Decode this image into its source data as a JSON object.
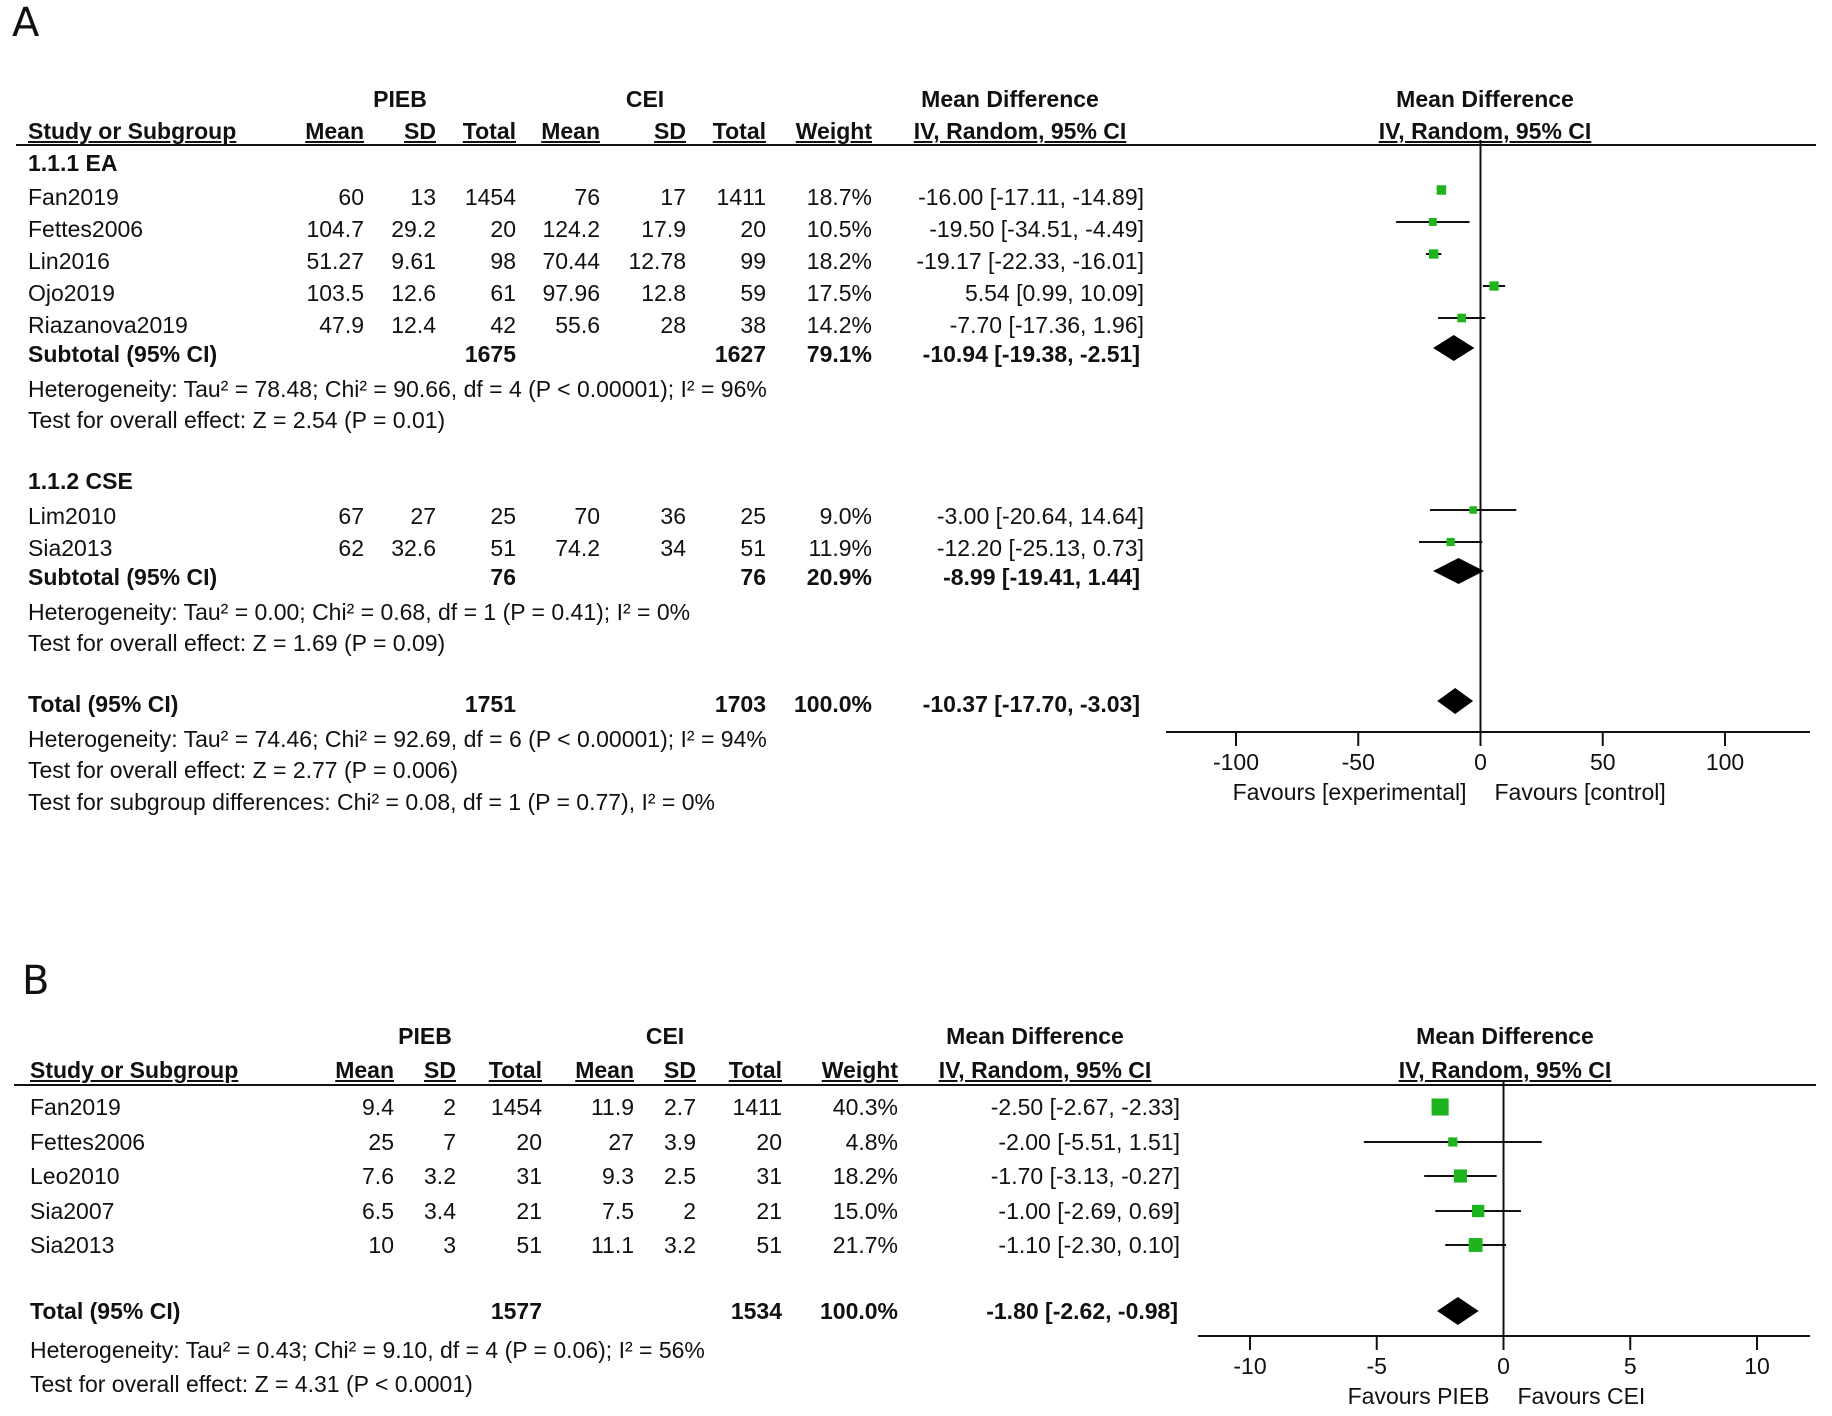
{
  "colors": {
    "box": "#1db41d",
    "line": "#111111",
    "diamond": "#000000"
  },
  "panels": [
    {
      "letter": "A",
      "headers": {
        "group1": "PIEB",
        "group2": "CEI",
        "md_title": "Mean Difference",
        "md_method": "IV, Random, 95% CI",
        "study": "Study or Subgroup",
        "mean": "Mean",
        "sd": "SD",
        "total": "Total",
        "weight": "Weight",
        "plot_title": "Mean Difference",
        "plot_method": "IV, Random, 95% CI"
      },
      "subgroups": [
        {
          "title": "1.1.1 EA",
          "studies": [
            {
              "name": "Fan2019",
              "m1": "60",
              "sd1": "13",
              "n1": "1454",
              "m2": "76",
              "sd2": "17",
              "n2": "1411",
              "weight": "18.7%",
              "ci": "-16.00 [-17.11, -14.89]"
            },
            {
              "name": "Fettes2006",
              "m1": "104.7",
              "sd1": "29.2",
              "n1": "20",
              "m2": "124.2",
              "sd2": "17.9",
              "n2": "20",
              "weight": "10.5%",
              "ci": "-19.50 [-34.51, -4.49]"
            },
            {
              "name": "Lin2016",
              "m1": "51.27",
              "sd1": "9.61",
              "n1": "98",
              "m2": "70.44",
              "sd2": "12.78",
              "n2": "99",
              "weight": "18.2%",
              "ci": "-19.17 [-22.33, -16.01]"
            },
            {
              "name": "Ojo2019",
              "m1": "103.5",
              "sd1": "12.6",
              "n1": "61",
              "m2": "97.96",
              "sd2": "12.8",
              "n2": "59",
              "weight": "17.5%",
              "ci": "5.54 [0.99, 10.09]"
            },
            {
              "name": "Riazanova2019",
              "m1": "47.9",
              "sd1": "12.4",
              "n1": "42",
              "m2": "55.6",
              "sd2": "28",
              "n2": "38",
              "weight": "14.2%",
              "ci": "-7.70 [-17.36, 1.96]"
            }
          ],
          "subtotal": {
            "label": "Subtotal (95% CI)",
            "n1": "1675",
            "n2": "1627",
            "weight": "79.1%",
            "ci": "-10.94 [-19.38, -2.51]"
          },
          "heterogeneity": "Heterogeneity: Tau² = 78.48; Chi² = 90.66, df = 4 (P < 0.00001); I² = 96%",
          "overall": "Test for overall effect: Z = 2.54 (P = 0.01)"
        },
        {
          "title": "1.1.2 CSE",
          "studies": [
            {
              "name": "Lim2010",
              "m1": "67",
              "sd1": "27",
              "n1": "25",
              "m2": "70",
              "sd2": "36",
              "n2": "25",
              "weight": "9.0%",
              "ci": "-3.00 [-20.64, 14.64]"
            },
            {
              "name": "Sia2013",
              "m1": "62",
              "sd1": "32.6",
              "n1": "51",
              "m2": "74.2",
              "sd2": "34",
              "n2": "51",
              "weight": "11.9%",
              "ci": "-12.20 [-25.13, 0.73]"
            }
          ],
          "subtotal": {
            "label": "Subtotal (95% CI)",
            "n1": "76",
            "n2": "76",
            "weight": "20.9%",
            "ci": "-8.99 [-19.41, 1.44]"
          },
          "heterogeneity": "Heterogeneity: Tau² = 0.00; Chi² = 0.68, df = 1 (P = 0.41); I² = 0%",
          "overall": "Test for overall effect: Z = 1.69 (P = 0.09)"
        }
      ],
      "total": {
        "label": "Total (95% CI)",
        "n1": "1751",
        "n2": "1703",
        "weight": "100.0%",
        "ci": "-10.37 [-17.70, -3.03]"
      },
      "total_heterogeneity": "Heterogeneity: Tau² = 74.46; Chi² = 92.69, df = 6 (P < 0.00001); I² = 94%",
      "total_overall": "Test for overall effect: Z = 2.77 (P = 0.006)",
      "subgroup_diff": "Test for subgroup differences: Chi² = 0.08, df = 1 (P = 0.77), I² = 0%",
      "axis": {
        "ticks": [
          "-100",
          "-50",
          "0",
          "50",
          "100"
        ],
        "left_label": "Favours [experimental]",
        "right_label": "Favours [control]"
      }
    },
    {
      "letter": "B",
      "headers": {
        "group1": "PIEB",
        "group2": "CEI",
        "md_title": "Mean Difference",
        "md_method": "IV, Random, 95% CI",
        "study": "Study or Subgroup",
        "mean": "Mean",
        "sd": "SD",
        "total": "Total",
        "weight": "Weight",
        "plot_title": "Mean Difference",
        "plot_method": "IV, Random, 95% CI"
      },
      "studies": [
        {
          "name": "Fan2019",
          "m1": "9.4",
          "sd1": "2",
          "n1": "1454",
          "m2": "11.9",
          "sd2": "2.7",
          "n2": "1411",
          "weight": "40.3%",
          "ci": "-2.50 [-2.67, -2.33]"
        },
        {
          "name": "Fettes2006",
          "m1": "25",
          "sd1": "7",
          "n1": "20",
          "m2": "27",
          "sd2": "3.9",
          "n2": "20",
          "weight": "4.8%",
          "ci": "-2.00 [-5.51, 1.51]"
        },
        {
          "name": "Leo2010",
          "m1": "7.6",
          "sd1": "3.2",
          "n1": "31",
          "m2": "9.3",
          "sd2": "2.5",
          "n2": "31",
          "weight": "18.2%",
          "ci": "-1.70 [-3.13, -0.27]"
        },
        {
          "name": "Sia2007",
          "m1": "6.5",
          "sd1": "3.4",
          "n1": "21",
          "m2": "7.5",
          "sd2": "2",
          "n2": "21",
          "weight": "15.0%",
          "ci": "-1.00 [-2.69, 0.69]"
        },
        {
          "name": "Sia2013",
          "m1": "10",
          "sd1": "3",
          "n1": "51",
          "m2": "11.1",
          "sd2": "3.2",
          "n2": "51",
          "weight": "21.7%",
          "ci": "-1.10 [-2.30, 0.10]"
        }
      ],
      "total": {
        "label": "Total (95% CI)",
        "n1": "1577",
        "n2": "1534",
        "weight": "100.0%",
        "ci": "-1.80 [-2.62, -0.98]"
      },
      "total_heterogeneity": "Heterogeneity: Tau² = 0.43; Chi² = 9.10, df = 4 (P = 0.06); I² = 56%",
      "total_overall": "Test for overall effect: Z = 4.31 (P < 0.0001)",
      "axis": {
        "ticks": [
          "-10",
          "-5",
          "0",
          "5",
          "10"
        ],
        "left_label": "Favours PIEB",
        "right_label": "Favours CEI"
      }
    }
  ],
  "chart_data": [
    {
      "type": "forest",
      "xlim": [
        -100,
        100
      ],
      "effect": "Mean Difference (IV, Random, 95% CI)",
      "rows": [
        {
          "kind": "study",
          "name": "Fan2019",
          "md": -16.0,
          "lo": -17.11,
          "hi": -14.89,
          "weight": 18.7
        },
        {
          "kind": "study",
          "name": "Fettes2006",
          "md": -19.5,
          "lo": -34.51,
          "hi": -4.49,
          "weight": 10.5
        },
        {
          "kind": "study",
          "name": "Lin2016",
          "md": -19.17,
          "lo": -22.33,
          "hi": -16.01,
          "weight": 18.2
        },
        {
          "kind": "study",
          "name": "Ojo2019",
          "md": 5.54,
          "lo": 0.99,
          "hi": 10.09,
          "weight": 17.5
        },
        {
          "kind": "study",
          "name": "Riazanova2019",
          "md": -7.7,
          "lo": -17.36,
          "hi": 1.96,
          "weight": 14.2
        },
        {
          "kind": "subtotal",
          "name": "Subtotal 1.1.1 EA",
          "md": -10.94,
          "lo": -19.38,
          "hi": -2.51,
          "weight": 79.1
        },
        {
          "kind": "study",
          "name": "Lim2010",
          "md": -3.0,
          "lo": -20.64,
          "hi": 14.64,
          "weight": 9.0
        },
        {
          "kind": "study",
          "name": "Sia2013",
          "md": -12.2,
          "lo": -25.13,
          "hi": 0.73,
          "weight": 11.9
        },
        {
          "kind": "subtotal",
          "name": "Subtotal 1.1.2 CSE",
          "md": -8.99,
          "lo": -19.41,
          "hi": 1.44,
          "weight": 20.9
        },
        {
          "kind": "total",
          "name": "Total",
          "md": -10.37,
          "lo": -17.7,
          "hi": -3.03,
          "weight": 100.0
        }
      ]
    },
    {
      "type": "forest",
      "xlim": [
        -10,
        10
      ],
      "effect": "Mean Difference (IV, Random, 95% CI)",
      "rows": [
        {
          "kind": "study",
          "name": "Fan2019",
          "md": -2.5,
          "lo": -2.67,
          "hi": -2.33,
          "weight": 40.3
        },
        {
          "kind": "study",
          "name": "Fettes2006",
          "md": -2.0,
          "lo": -5.51,
          "hi": 1.51,
          "weight": 4.8
        },
        {
          "kind": "study",
          "name": "Leo2010",
          "md": -1.7,
          "lo": -3.13,
          "hi": -0.27,
          "weight": 18.2
        },
        {
          "kind": "study",
          "name": "Sia2007",
          "md": -1.0,
          "lo": -2.69,
          "hi": 0.69,
          "weight": 15.0
        },
        {
          "kind": "study",
          "name": "Sia2013",
          "md": -1.1,
          "lo": -2.3,
          "hi": 0.1,
          "weight": 21.7
        },
        {
          "kind": "total",
          "name": "Total",
          "md": -1.8,
          "lo": -2.62,
          "hi": -0.98,
          "weight": 100.0
        }
      ]
    }
  ]
}
